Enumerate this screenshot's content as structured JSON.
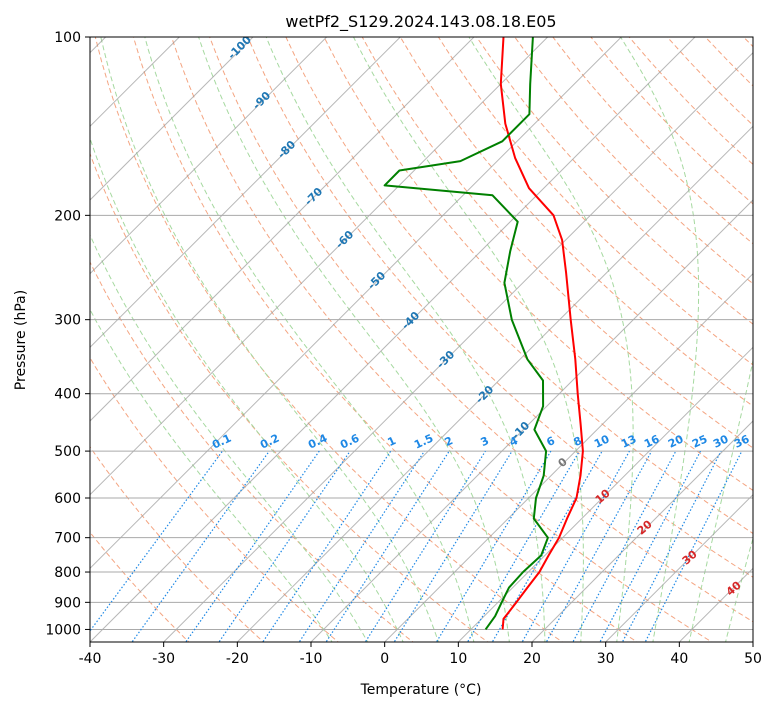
{
  "chart_data": {
    "type": "line",
    "subtype": "skew-t log-p diagram",
    "title": "wetPf2_S129.2024.143.08.18.E05",
    "xlabel": "Temperature (°C)",
    "ylabel": "Pressure (hPa)",
    "xlim": [
      -40,
      50
    ],
    "ylim": [
      1050,
      100
    ],
    "yscale": "log",
    "x_ticks": [
      -40,
      -30,
      -20,
      -10,
      0,
      10,
      20,
      30,
      40,
      50
    ],
    "y_ticks": [
      1000,
      900,
      800,
      700,
      600,
      500,
      400,
      300,
      200,
      100
    ],
    "grid": true,
    "colors": {
      "temperature": "#ff0000",
      "dewpoint": "#008000",
      "dry_adiabat": "#f4a582",
      "moist_adiabat": "#a6d9a0",
      "isotherm": "#999999",
      "mixing_ratio": "#1e88e5",
      "isotherm_label": "#1f77b4",
      "moist_label": "#d62728"
    },
    "isotherm_labels": [
      -100,
      -90,
      -80,
      -70,
      -60,
      -50,
      -40,
      -30,
      -20,
      -10
    ],
    "mixing_ratio_labels": [
      "0.1",
      "0.2",
      "0.4",
      "0.6",
      "1",
      "1.5",
      "2",
      "3",
      "4",
      "6",
      "8",
      "10",
      "13",
      "16",
      "20",
      "25",
      "30",
      "36"
    ],
    "moist_adiabat_labels": [
      "0",
      "10",
      "20",
      "30",
      "40"
    ],
    "series": [
      {
        "name": "Temperature",
        "points": [
          [
            1000,
            14.3
          ],
          [
            960,
            13.0
          ],
          [
            900,
            12.5
          ],
          [
            850,
            12.0
          ],
          [
            800,
            11.5
          ],
          [
            750,
            10.5
          ],
          [
            700,
            9.5
          ],
          [
            650,
            8.0
          ],
          [
            600,
            6.5
          ],
          [
            550,
            4.0
          ],
          [
            500,
            1.0
          ],
          [
            450,
            -3.0
          ],
          [
            400,
            -7.5
          ],
          [
            350,
            -12.5
          ],
          [
            300,
            -18.5
          ],
          [
            250,
            -25.5
          ],
          [
            220,
            -30.5
          ],
          [
            200,
            -35.0
          ],
          [
            180,
            -42.0
          ],
          [
            160,
            -48.0
          ],
          [
            140,
            -54.0
          ],
          [
            120,
            -60.0
          ],
          [
            100,
            -66.0
          ]
        ]
      },
      {
        "name": "Dewpoint",
        "points": [
          [
            1000,
            12.0
          ],
          [
            950,
            11.5
          ],
          [
            900,
            10.5
          ],
          [
            850,
            9.5
          ],
          [
            800,
            9.3
          ],
          [
            750,
            9.5
          ],
          [
            700,
            8.0
          ],
          [
            650,
            3.5
          ],
          [
            600,
            1.0
          ],
          [
            550,
            -1.0
          ],
          [
            500,
            -4.0
          ],
          [
            460,
            -8.5
          ],
          [
            420,
            -10.5
          ],
          [
            380,
            -14.0
          ],
          [
            350,
            -19.0
          ],
          [
            300,
            -26.5
          ],
          [
            260,
            -32.5
          ],
          [
            230,
            -36.0
          ],
          [
            205,
            -39.0
          ],
          [
            185,
            -46.0
          ],
          [
            178,
            -62.0
          ],
          [
            168,
            -62.0
          ],
          [
            162,
            -55.0
          ],
          [
            150,
            -52.0
          ],
          [
            135,
            -52.0
          ],
          [
            120,
            -56.0
          ],
          [
            100,
            -62.0
          ]
        ]
      }
    ]
  }
}
